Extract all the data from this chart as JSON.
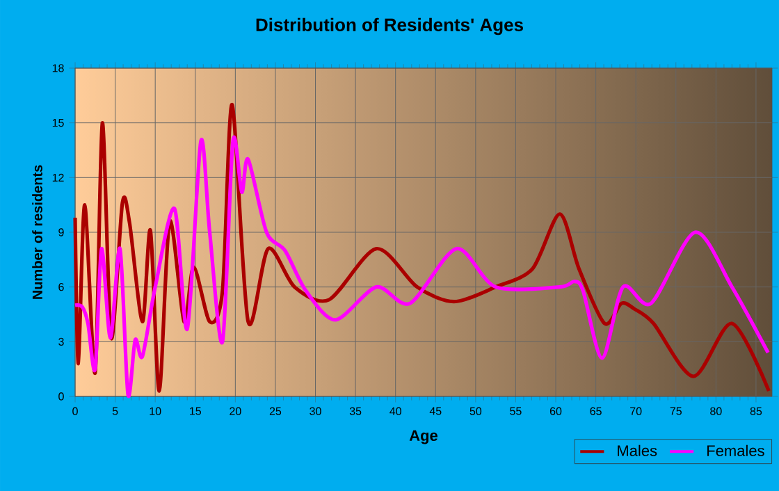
{
  "chart_data": {
    "type": "line",
    "title": "Distribution of Residents' Ages",
    "xlabel": "Age",
    "ylabel": "Number of residents",
    "xlim": [
      0,
      87
    ],
    "xticks": [
      0,
      5,
      10,
      15,
      20,
      25,
      30,
      35,
      40,
      45,
      50,
      55,
      60,
      65,
      70,
      75,
      80,
      85
    ],
    "ylim": [
      0,
      18
    ],
    "yticks": [
      0,
      3,
      6,
      9,
      12,
      15,
      18
    ],
    "grid": true,
    "legend": "bottom right",
    "line_style": "solid",
    "marker": "none",
    "series": [
      {
        "name": "Males",
        "color": "#aa0000",
        "x": [
          0,
          0.4,
          1.2,
          2.5,
          3.4,
          4.5,
          5.9,
          6.8,
          8.4,
          9.4,
          10.5,
          11.8,
          13.6,
          14.8,
          16.8,
          18.4,
          19.6,
          21.6,
          24.1,
          27.4,
          31.7,
          37.6,
          42.7,
          47.3,
          52.5,
          57.1,
          60.5,
          62.9,
          66.1,
          68.2,
          69.8,
          72.2,
          77.2,
          82,
          86.6
        ],
        "values": [
          9.8,
          1.8,
          10.5,
          1.3,
          15,
          3.2,
          10.6,
          9.5,
          4.1,
          9.1,
          0.3,
          9.6,
          4.1,
          7.1,
          4.1,
          5.8,
          16,
          4.1,
          8.1,
          6,
          5.3,
          8.1,
          6,
          5.2,
          6,
          7,
          10,
          7,
          4,
          5.1,
          4.8,
          4,
          1.1,
          4,
          0.3
        ]
      },
      {
        "name": "Females",
        "color": "#ff00ff",
        "x": [
          0,
          0.9,
          1.6,
          2.5,
          3.3,
          4.4,
          5.6,
          6.6,
          7.5,
          8.4,
          10,
          12.4,
          14,
          15.7,
          16.8,
          18.4,
          19.7,
          20.8,
          21.6,
          23.9,
          26.2,
          28.8,
          32.5,
          37.6,
          41.8,
          47.6,
          52.5,
          60.5,
          62.3,
          63.4,
          65.8,
          68.4,
          71.9,
          77.4,
          82,
          86.5
        ],
        "values": [
          5,
          4.9,
          4,
          1.5,
          8.1,
          3.2,
          8.1,
          0.1,
          3.1,
          2.2,
          6,
          10.3,
          3.7,
          14,
          9,
          3,
          14,
          11.2,
          13,
          9,
          8,
          5.8,
          4.2,
          6,
          5.1,
          8.1,
          6,
          6,
          6.3,
          5.8,
          2.1,
          6,
          5.1,
          9,
          6,
          2.4
        ]
      }
    ]
  }
}
